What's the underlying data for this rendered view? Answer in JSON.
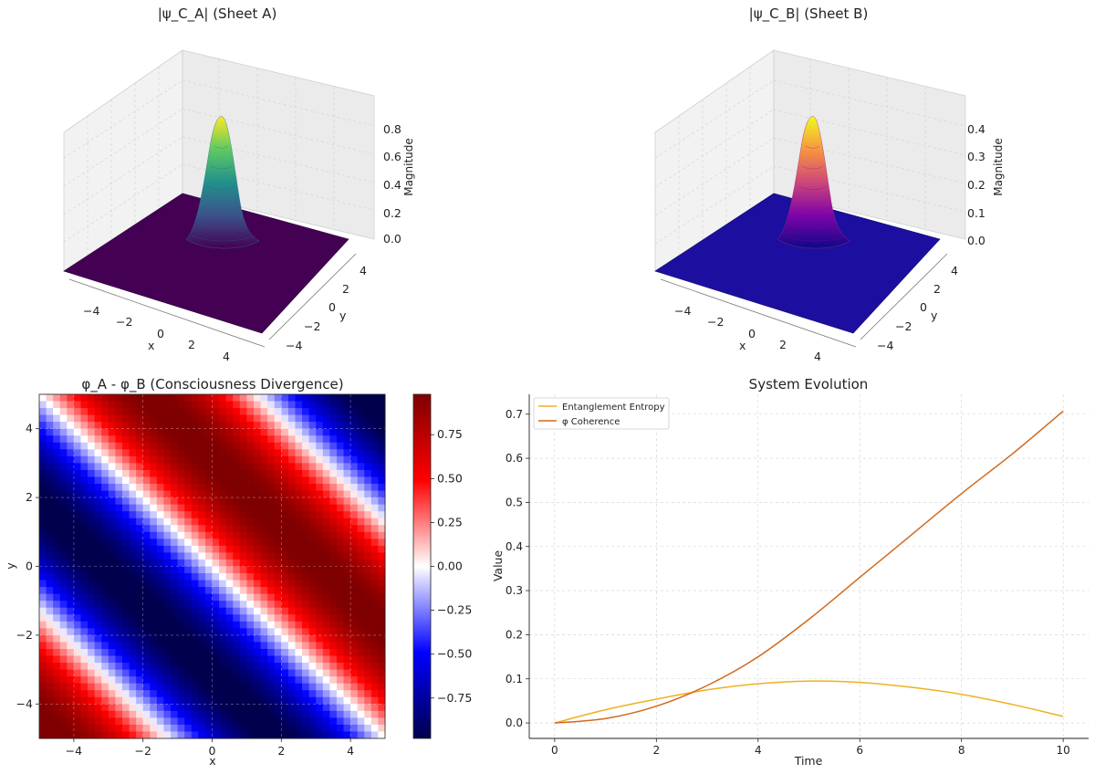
{
  "figure": {
    "background": "#ffffff"
  },
  "chart_data": [
    {
      "id": "sheetA",
      "type": "surface3d",
      "title": "|ψ_C_A| (Sheet A)",
      "xlabel": "x",
      "ylabel": "y",
      "zlabel": "Magnitude",
      "xlim": [
        -5,
        5
      ],
      "ylim": [
        -5,
        5
      ],
      "zlim": [
        0,
        0.95
      ],
      "xticks": [
        "−4",
        "−2",
        "0",
        "2",
        "4"
      ],
      "yticks": [
        "−4",
        "−2",
        "0",
        "2",
        "4"
      ],
      "zticks": [
        "0.0",
        "0.2",
        "0.4",
        "0.6",
        "0.8"
      ],
      "zvalues": [
        0,
        0.2,
        0.4,
        0.6,
        0.8
      ],
      "peak": 0.9,
      "center": [
        0,
        0
      ],
      "width": 0.75,
      "colormap": "viridis",
      "colormap_stops": [
        "#440154",
        "#3b528b",
        "#21918c",
        "#5ec962",
        "#fde725"
      ]
    },
    {
      "id": "sheetB",
      "type": "surface3d",
      "title": "|ψ_C_B| (Sheet B)",
      "xlabel": "x",
      "ylabel": "y",
      "zlabel": "Magnitude",
      "xlim": [
        -5,
        5
      ],
      "ylim": [
        -5,
        5
      ],
      "zlim": [
        0,
        0.47
      ],
      "xticks": [
        "−4",
        "−2",
        "0",
        "2",
        "4"
      ],
      "yticks": [
        "−4",
        "−2",
        "0",
        "2",
        "4"
      ],
      "zticks": [
        "0.0",
        "0.1",
        "0.2",
        "0.3",
        "0.4"
      ],
      "zvalues": [
        0,
        0.1,
        0.2,
        0.3,
        0.4
      ],
      "peak": 0.45,
      "center": [
        0,
        0
      ],
      "width": 0.75,
      "colormap": "plasma",
      "colormap_stops": [
        "#0d0887",
        "#7e03a8",
        "#cc4778",
        "#f89540",
        "#f0f921"
      ]
    },
    {
      "id": "divergence",
      "type": "heatmap",
      "title": "φ_A - φ_B (Consciousness Divergence)",
      "xlabel": "x",
      "ylabel": "y",
      "xlim": [
        -5,
        5
      ],
      "ylim": [
        -5,
        5
      ],
      "xticks": [
        "−4",
        "−2",
        "0",
        "2",
        "4"
      ],
      "xtickvals": [
        -4,
        -2,
        0,
        2,
        4
      ],
      "yticks": [
        "−4",
        "−2",
        "0",
        "2",
        "4"
      ],
      "ytickvals": [
        -4,
        -2,
        0,
        2,
        4
      ],
      "grid": 50,
      "field": "sin((x + y) / 2)",
      "colormap": "seismic",
      "colormap_stops": [
        "#00004c",
        "#0000ff",
        "#ffffff",
        "#ff0000",
        "#7f0000"
      ],
      "colorbar": {
        "min": -0.98,
        "max": 0.98,
        "tickvals": [
          0.75,
          0.5,
          0.25,
          0,
          -0.25,
          -0.5,
          -0.75
        ],
        "ticks": [
          "0.75",
          "0.50",
          "0.25",
          "0.00",
          "−0.25",
          "−0.50",
          "−0.75"
        ]
      }
    },
    {
      "id": "evolution",
      "type": "line",
      "title": "System Evolution",
      "xlabel": "Time",
      "ylabel": "Value",
      "xlim": [
        -0.5,
        10.5
      ],
      "ylim": [
        -0.035,
        0.745
      ],
      "xticks": [
        "0",
        "2",
        "4",
        "6",
        "8",
        "10"
      ],
      "xtickvals": [
        0,
        2,
        4,
        6,
        8,
        10
      ],
      "yticks": [
        "0.0",
        "0.1",
        "0.2",
        "0.3",
        "0.4",
        "0.5",
        "0.6",
        "0.7"
      ],
      "ytickvals": [
        0,
        0.1,
        0.2,
        0.3,
        0.4,
        0.5,
        0.6,
        0.7
      ],
      "grid": true,
      "legend": "top-left",
      "x": [
        0,
        1,
        2,
        3,
        4,
        5,
        6,
        7,
        8,
        9,
        10
      ],
      "series": [
        {
          "name": "Entanglement Entropy",
          "color": "#f0b020",
          "values": [
            0.0,
            0.03,
            0.054,
            0.075,
            0.089,
            0.095,
            0.092,
            0.081,
            0.065,
            0.042,
            0.015
          ]
        },
        {
          "name": "φ Coherence",
          "color": "#d2691e",
          "values": [
            0.0,
            0.01,
            0.038,
            0.085,
            0.15,
            0.235,
            0.33,
            0.425,
            0.52,
            0.61,
            0.707
          ]
        }
      ]
    }
  ]
}
